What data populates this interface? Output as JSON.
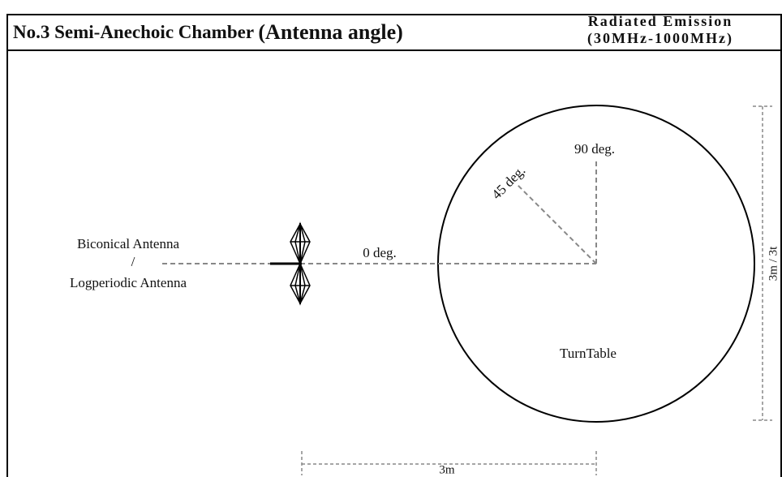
{
  "header": {
    "title": "No.3 Semi-Anechoic Chamber",
    "title_emphasis": "(Antenna angle)",
    "subtitle": [
      "Radiated Emission",
      "(30MHz-1000MHz)"
    ]
  },
  "antenna": {
    "label_top": "Biconical Antenna",
    "separator": "/",
    "label_bottom": "Logperiodic Antenna"
  },
  "angles": [
    "0 deg.",
    "45 deg.",
    "90 deg."
  ],
  "turntable": "TurnTable",
  "dimensions": {
    "horizontal": "3m",
    "vertical": "3m / 3t"
  }
}
